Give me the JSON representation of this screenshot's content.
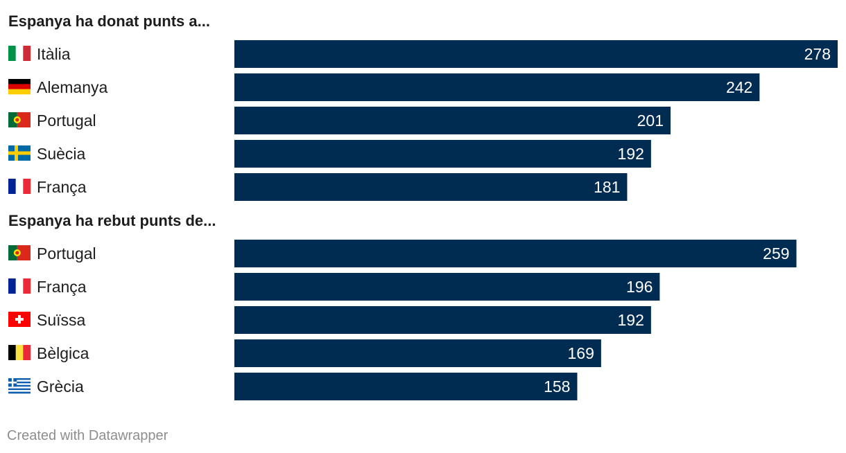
{
  "colors": {
    "bar": "#002c52",
    "label": "#1d1d1d",
    "value": "#ffffff",
    "footer": "#8d8d8d"
  },
  "footer": "Created with Datawrapper",
  "chart_data": [
    {
      "type": "bar",
      "orientation": "horizontal",
      "title": "Espanya ha donat punts a...",
      "categories": [
        "Itàlia",
        "Alemanya",
        "Portugal",
        "Suècia",
        "França"
      ],
      "flags": [
        "italy-flag-icon",
        "germany-flag-icon",
        "portugal-flag-icon",
        "sweden-flag-icon",
        "france-flag-icon"
      ],
      "values": [
        278,
        242,
        201,
        192,
        181
      ],
      "xlim": [
        0,
        278
      ]
    },
    {
      "type": "bar",
      "orientation": "horizontal",
      "title": "Espanya ha rebut punts de...",
      "categories": [
        "Portugal",
        "França",
        "Suïssa",
        "Bèlgica",
        "Grècia"
      ],
      "flags": [
        "portugal-flag-icon",
        "france-flag-icon",
        "switzerland-flag-icon",
        "belgium-flag-icon",
        "greece-flag-icon"
      ],
      "values": [
        259,
        196,
        192,
        169,
        158
      ],
      "xlim": [
        0,
        278
      ]
    }
  ]
}
